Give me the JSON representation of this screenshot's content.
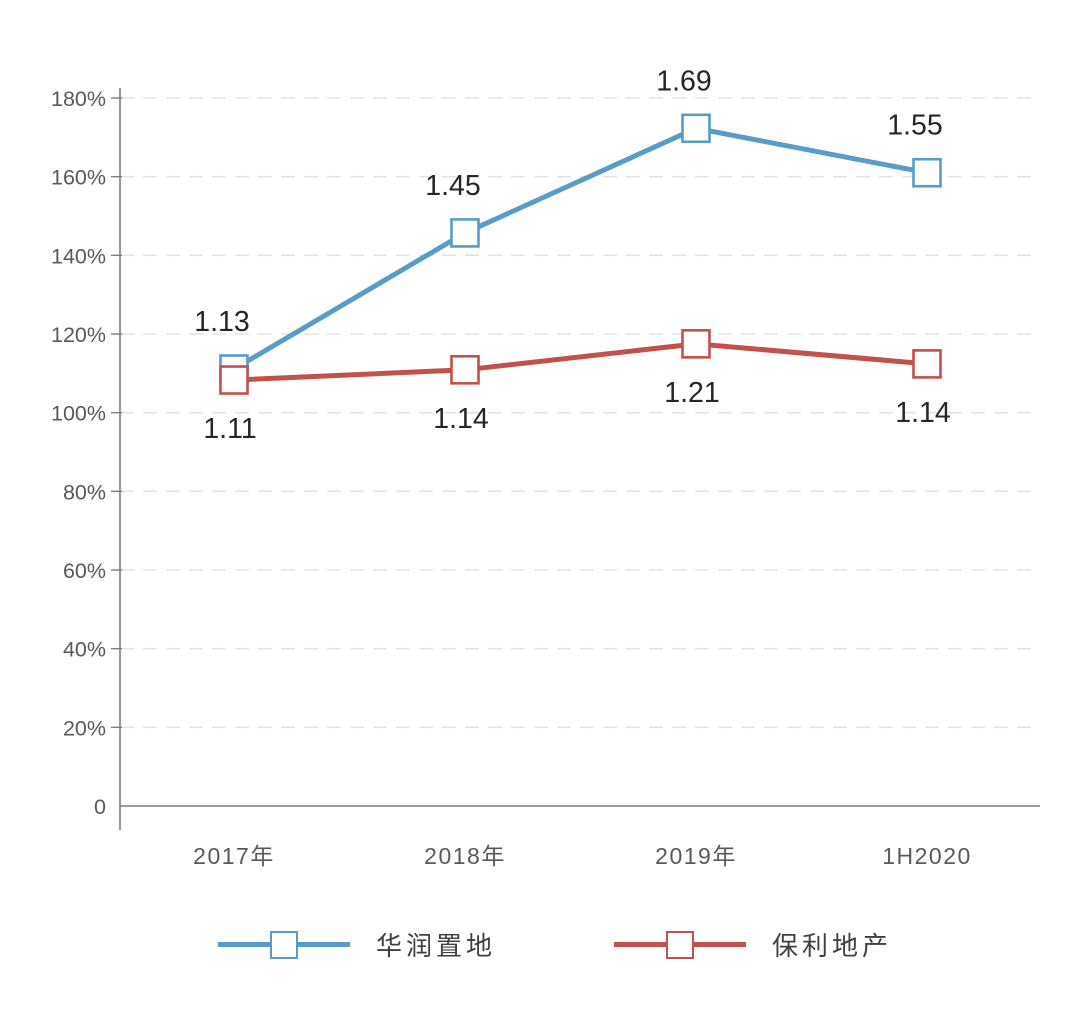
{
  "chart_data": {
    "type": "line",
    "title": "",
    "categories": [
      "2017年",
      "2018年",
      "2019年",
      "1H2020"
    ],
    "series": [
      {
        "name": "华润置地",
        "color": "#5B9BC8",
        "marker": "open-square",
        "values": [
          1.13,
          1.45,
          1.69,
          1.55
        ],
        "value_labels": [
          "1.13",
          "1.45",
          "1.69",
          "1.55"
        ],
        "plotted_pct": [
          111.1,
          145.7,
          172.3,
          161.0
        ],
        "label_position": "above"
      },
      {
        "name": "保利地产",
        "color": "#C2504B",
        "marker": "open-square",
        "values": [
          1.11,
          1.14,
          1.21,
          1.14
        ],
        "value_labels": [
          "1.11",
          "1.14",
          "1.21",
          "1.14"
        ],
        "plotted_pct": [
          108.3,
          110.9,
          117.5,
          112.4
        ],
        "label_position": "below"
      }
    ],
    "y_axis": {
      "range": [
        0,
        180
      ],
      "unit": "%",
      "ticks": [
        {
          "label": "180%",
          "value": 180
        },
        {
          "label": "160%",
          "value": 160
        },
        {
          "label": "140%",
          "value": 140
        },
        {
          "label": "120%",
          "value": 120
        },
        {
          "label": "100%",
          "value": 100
        },
        {
          "label": "80%",
          "value": 80
        },
        {
          "label": "60%",
          "value": 60
        },
        {
          "label": "40%",
          "value": 40
        },
        {
          "label": "20%",
          "value": 20
        },
        {
          "label": "0",
          "value": 0
        }
      ]
    },
    "xlabel": "",
    "ylabel": "",
    "grid": "horizontal-dashed",
    "legend_position": "bottom-center",
    "colors": {
      "grid": "#E3E3E3",
      "axis": "#7F7F7F",
      "tick_text": "#595959",
      "data_label": "#262626",
      "background": "#FFFFFF"
    }
  }
}
